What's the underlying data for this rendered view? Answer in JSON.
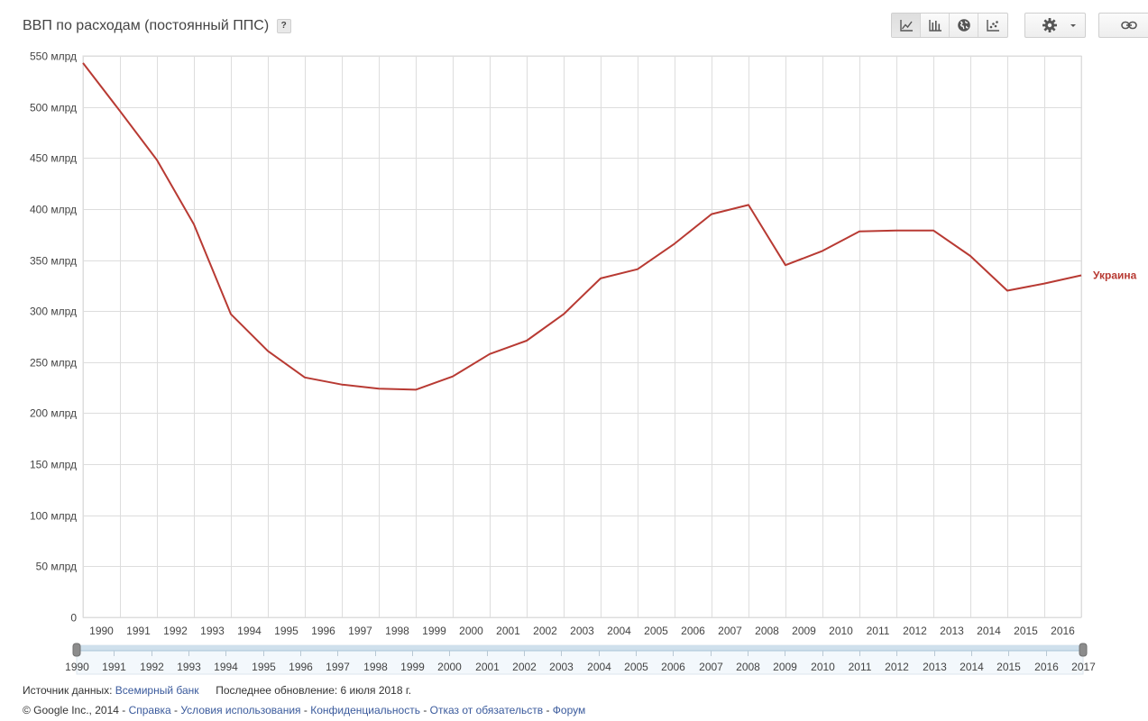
{
  "title": "ВВП по расходам (постоянный ППС)",
  "help_label": "?",
  "toolbar": {
    "view_buttons": [
      "line-chart-icon",
      "bar-chart-icon",
      "globe-map-icon",
      "scatter-chart-icon"
    ],
    "active_view": "line-chart-icon",
    "settings_icon": "gear-icon",
    "dropdown_icon": "caret-down-icon",
    "link_icon": "link-icon"
  },
  "colors": {
    "series": "#b83a33",
    "grid": "#dddddd",
    "axis_text": "#444444",
    "link": "#3a5a9c"
  },
  "chart_data": {
    "type": "line",
    "title": "ВВП по расходам (постоянный ППС)",
    "xlabel": "",
    "ylabel": "",
    "x": [
      1990,
      1991,
      1992,
      1993,
      1994,
      1995,
      1996,
      1997,
      1998,
      1999,
      2000,
      2001,
      2002,
      2003,
      2004,
      2005,
      2006,
      2007,
      2008,
      2009,
      2010,
      2011,
      2012,
      2013,
      2014,
      2015,
      2016,
      2017
    ],
    "x_tick_labels": [
      "1990",
      "1991",
      "1992",
      "1993",
      "1994",
      "1995",
      "1996",
      "1997",
      "1998",
      "1999",
      "2000",
      "2001",
      "2002",
      "2003",
      "2004",
      "2005",
      "2006",
      "2007",
      "2008",
      "2009",
      "2010",
      "2011",
      "2012",
      "2013",
      "2014",
      "2015",
      "2016"
    ],
    "y_tick_labels": [
      "0",
      "50 млрд",
      "100 млрд",
      "150 млрд",
      "200 млрд",
      "250 млрд",
      "300 млрд",
      "350 млрд",
      "400 млрд",
      "450 млрд",
      "500 млрд",
      "550 млрд"
    ],
    "ylim": [
      0,
      550
    ],
    "grid": true,
    "series": [
      {
        "name": "Украина",
        "values": [
          543,
          496,
          448,
          385,
          297,
          261,
          235,
          228,
          224,
          223,
          236,
          258,
          271,
          297,
          332,
          341,
          366,
          395,
          404,
          345,
          359,
          378,
          379,
          379,
          354,
          320,
          327,
          335
        ]
      }
    ],
    "range_slider": {
      "start": "1990",
      "end": "2017",
      "labels": [
        "1990",
        "1991",
        "1992",
        "1993",
        "1994",
        "1995",
        "1996",
        "1997",
        "1998",
        "1999",
        "2000",
        "2001",
        "2002",
        "2003",
        "2004",
        "2005",
        "2006",
        "2007",
        "2008",
        "2009",
        "2010",
        "2011",
        "2012",
        "2013",
        "2014",
        "2015",
        "2016",
        "2017"
      ]
    }
  },
  "footer": {
    "source_label": "Источник данных:",
    "source_link": "Всемирный банк",
    "updated": "Последнее обновление: 6 июля 2018 г.",
    "copyright": "© Google Inc., 2014 -",
    "links": [
      "Справка",
      "Условия использования",
      "Конфиденциальность",
      "Отказ от обязательств",
      "Форум"
    ],
    "link_separator": "-"
  }
}
